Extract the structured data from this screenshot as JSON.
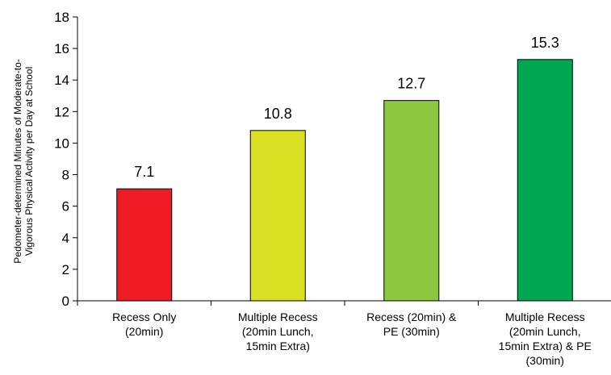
{
  "chart_data": {
    "type": "bar",
    "title": "",
    "xlabel": "",
    "ylabel_lines": [
      "Pedometer-determined Minutes of Moderate-to-",
      "Vigorous Physical Activity per Day at School"
    ],
    "ylim": [
      0,
      18
    ],
    "yticks": [
      0,
      2,
      4,
      6,
      8,
      10,
      12,
      14,
      16,
      18
    ],
    "grid": false,
    "legend": "none",
    "categories": [
      [
        "Recess Only",
        "(20min)"
      ],
      [
        "Multiple Recess",
        "(20min Lunch,",
        "15min Extra)"
      ],
      [
        "Recess (20min) &",
        "PE (30min)"
      ],
      [
        "Multiple Recess",
        "(20min Lunch,",
        "15min Extra) & PE",
        "(30min)"
      ]
    ],
    "values": [
      7.1,
      10.8,
      12.7,
      15.3
    ],
    "data_labels": [
      "7.1",
      "10.8",
      "12.7",
      "15.3"
    ],
    "colors": [
      "#ee1c25",
      "#d7e021",
      "#8dc63f",
      "#00a651"
    ]
  }
}
